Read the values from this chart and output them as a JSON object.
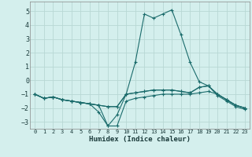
{
  "xlabel": "Humidex (Indice chaleur)",
  "background_color": "#d4efed",
  "grid_color": "#b8d8d4",
  "line_color": "#1a6b6b",
  "xlim": [
    -0.5,
    23.5
  ],
  "ylim": [
    -3.5,
    5.7
  ],
  "yticks": [
    -3,
    -2,
    -1,
    0,
    1,
    2,
    3,
    4,
    5
  ],
  "xticks": [
    0,
    1,
    2,
    3,
    4,
    5,
    6,
    7,
    8,
    9,
    10,
    11,
    12,
    13,
    14,
    15,
    16,
    17,
    18,
    19,
    20,
    21,
    22,
    23
  ],
  "lines": [
    {
      "x": [
        0,
        1,
        2,
        3,
        4,
        5,
        6,
        7,
        8,
        9,
        10,
        11,
        12,
        13,
        14,
        15,
        16,
        17,
        18,
        19,
        20,
        21,
        22,
        23
      ],
      "y": [
        -1.0,
        -1.3,
        -1.2,
        -1.4,
        -1.5,
        -1.6,
        -1.7,
        -1.8,
        -3.3,
        -2.5,
        -1.0,
        1.3,
        4.8,
        4.5,
        4.8,
        5.1,
        3.3,
        1.3,
        -0.1,
        -0.4,
        -1.0,
        -1.4,
        -1.8,
        -2.0
      ]
    },
    {
      "x": [
        0,
        1,
        2,
        3,
        4,
        5,
        6,
        7,
        8,
        9,
        10,
        11,
        12,
        13,
        14,
        15,
        16,
        17,
        18,
        19,
        20,
        21,
        22,
        23
      ],
      "y": [
        -1.0,
        -1.3,
        -1.2,
        -1.4,
        -1.5,
        -1.6,
        -1.7,
        -1.8,
        -1.9,
        -1.9,
        -1.0,
        -0.9,
        -0.8,
        -0.7,
        -0.7,
        -0.7,
        -0.8,
        -0.9,
        -0.5,
        -0.4,
        -1.0,
        -1.4,
        -1.8,
        -2.0
      ]
    },
    {
      "x": [
        0,
        1,
        2,
        3,
        4,
        5,
        6,
        7,
        8,
        9,
        10,
        11,
        12,
        13,
        14,
        15,
        16,
        17,
        18,
        19,
        20,
        21,
        22,
        23
      ],
      "y": [
        -1.0,
        -1.3,
        -1.2,
        -1.4,
        -1.5,
        -1.6,
        -1.7,
        -2.3,
        -3.3,
        -3.3,
        -1.5,
        -1.3,
        -1.2,
        -1.1,
        -1.0,
        -1.0,
        -1.0,
        -1.0,
        -0.9,
        -0.8,
        -1.0,
        -1.4,
        -1.8,
        -2.0
      ]
    },
    {
      "x": [
        0,
        1,
        2,
        3,
        4,
        5,
        6,
        7,
        8,
        9,
        10,
        11,
        12,
        13,
        14,
        15,
        16,
        17,
        18,
        19,
        20,
        21,
        22,
        23
      ],
      "y": [
        -1.0,
        -1.3,
        -1.2,
        -1.4,
        -1.5,
        -1.6,
        -1.7,
        -1.8,
        -1.9,
        -1.9,
        -1.0,
        -0.9,
        -0.8,
        -0.7,
        -0.7,
        -0.7,
        -0.8,
        -0.9,
        -0.5,
        -0.4,
        -1.1,
        -1.5,
        -1.9,
        -2.1
      ]
    }
  ]
}
